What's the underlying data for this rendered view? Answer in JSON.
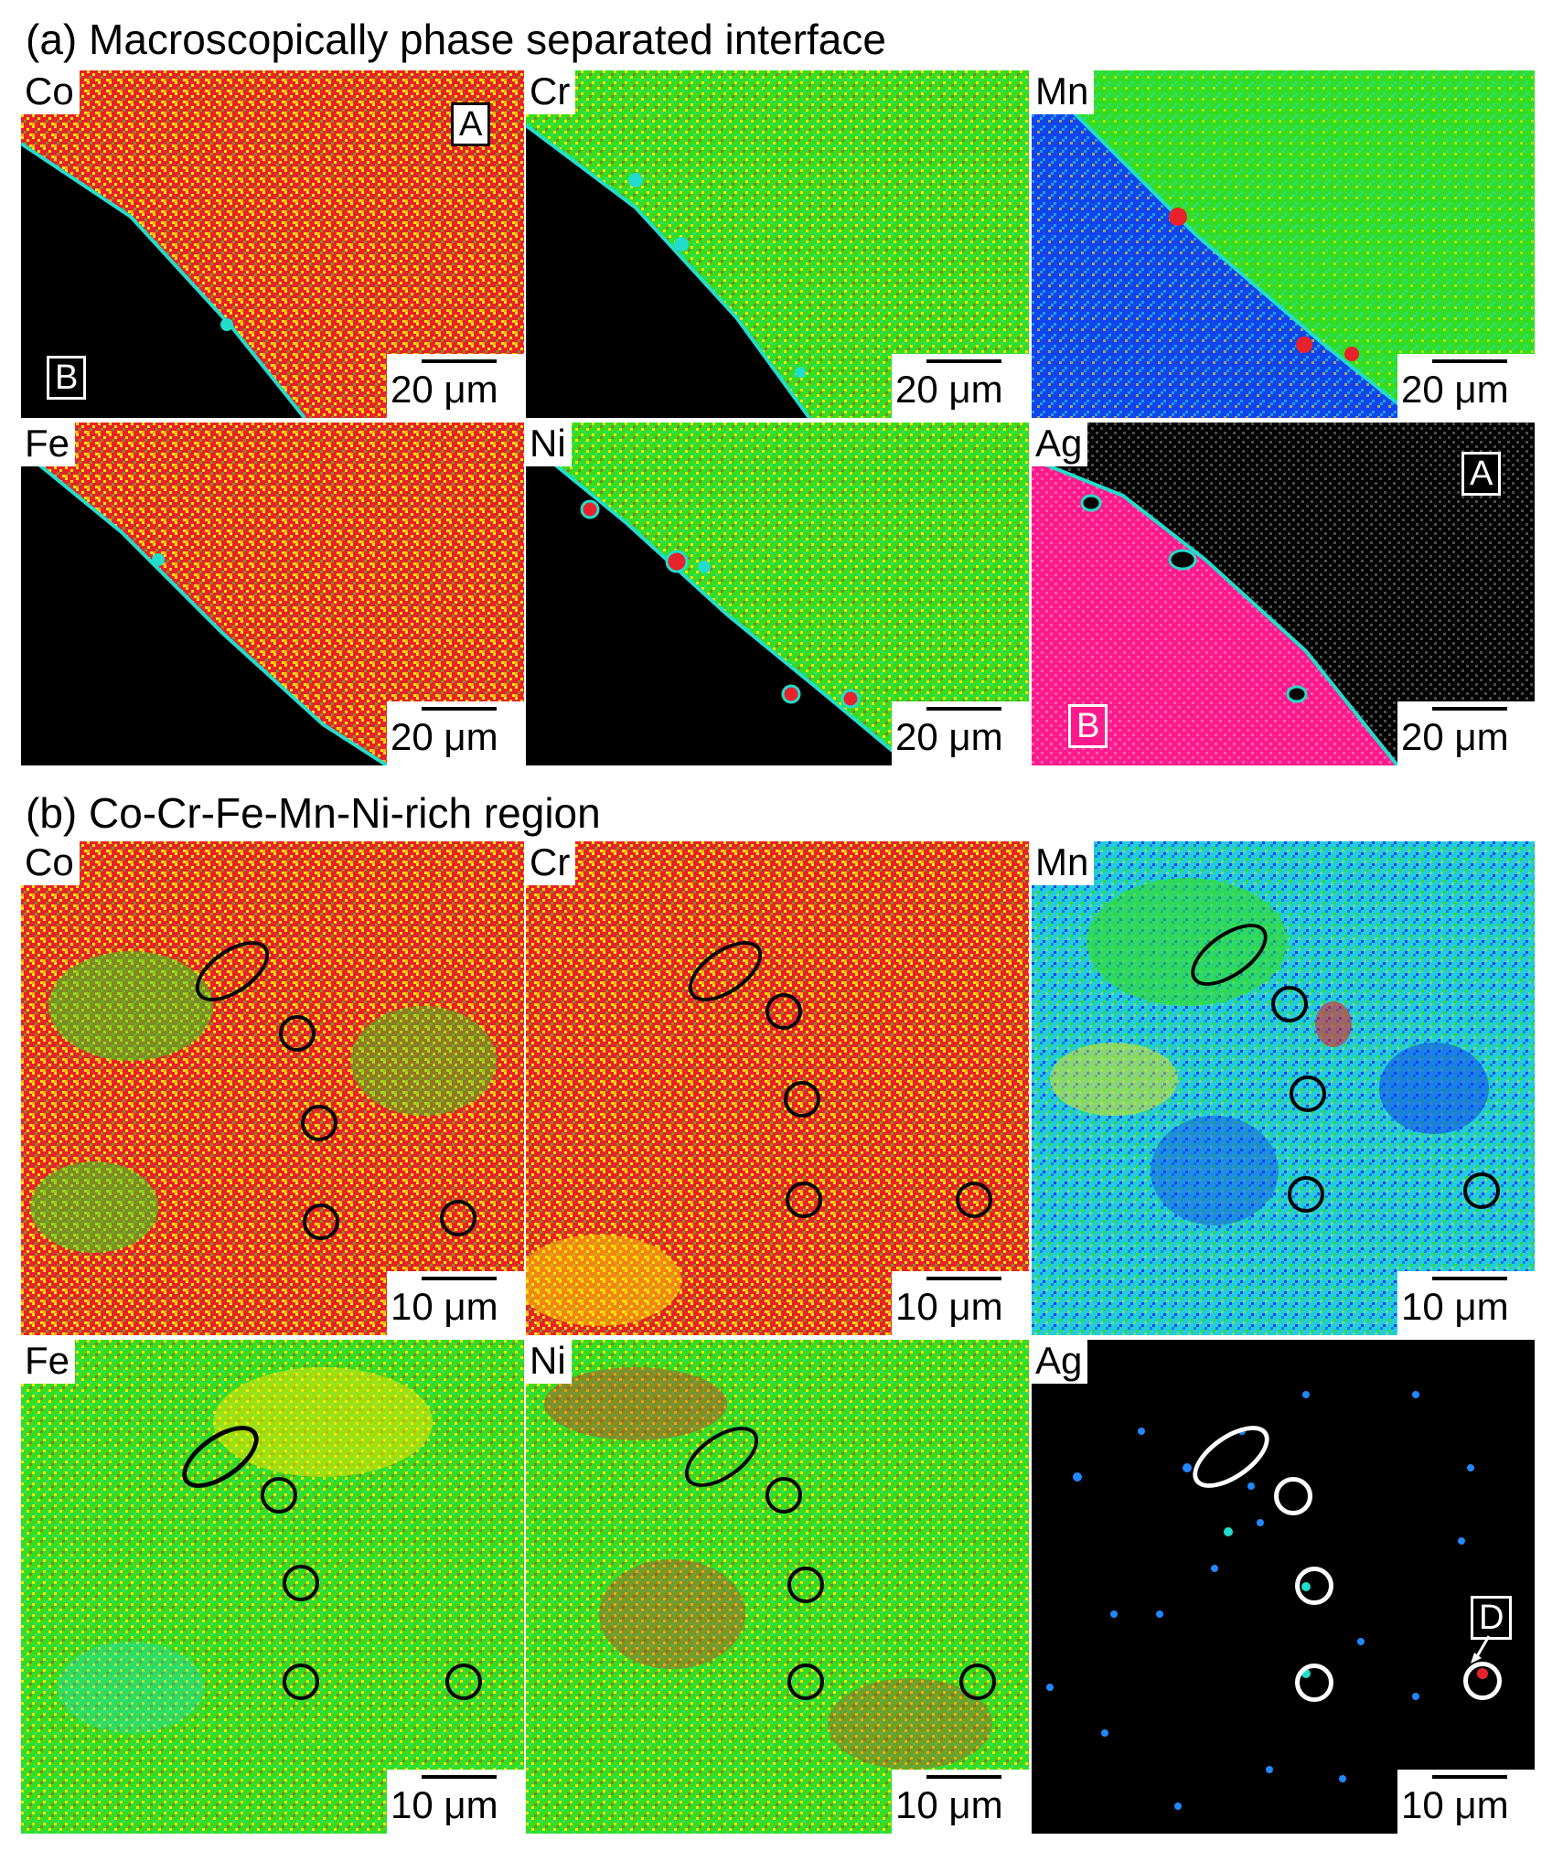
{
  "sections": [
    {
      "title": "(a) Macroscopically phase separated interface"
    },
    {
      "title": "(b) Co-Cr-Fe-Mn-Ni-rich region"
    }
  ],
  "panels": [
    {
      "element": "Co",
      "scale": "20 μm",
      "markers": [
        "A",
        "B"
      ]
    },
    {
      "element": "Cr",
      "scale": "20 μm"
    },
    {
      "element": "Mn",
      "scale": "20 μm"
    },
    {
      "element": "Fe",
      "scale": "20 μm"
    },
    {
      "element": "Ni",
      "scale": "20 μm"
    },
    {
      "element": "Ag",
      "scale": "20 μm",
      "markers": [
        "A",
        "B"
      ]
    },
    {
      "element": "Co",
      "scale": "10 μm"
    },
    {
      "element": "Cr",
      "scale": "10 μm"
    },
    {
      "element": "Mn",
      "scale": "10 μm"
    },
    {
      "element": "Fe",
      "scale": "10 μm"
    },
    {
      "element": "Ni",
      "scale": "10 μm"
    },
    {
      "element": "Ag",
      "scale": "10 μm",
      "markers": [
        "D"
      ]
    }
  ],
  "colors": {
    "red": "#e8222a",
    "yellow": "#ffe600",
    "green": "#33dd22",
    "cyan": "#22ddcc",
    "blue": "#1144ee",
    "black": "#000000",
    "magenta": "#ff1a8c"
  }
}
